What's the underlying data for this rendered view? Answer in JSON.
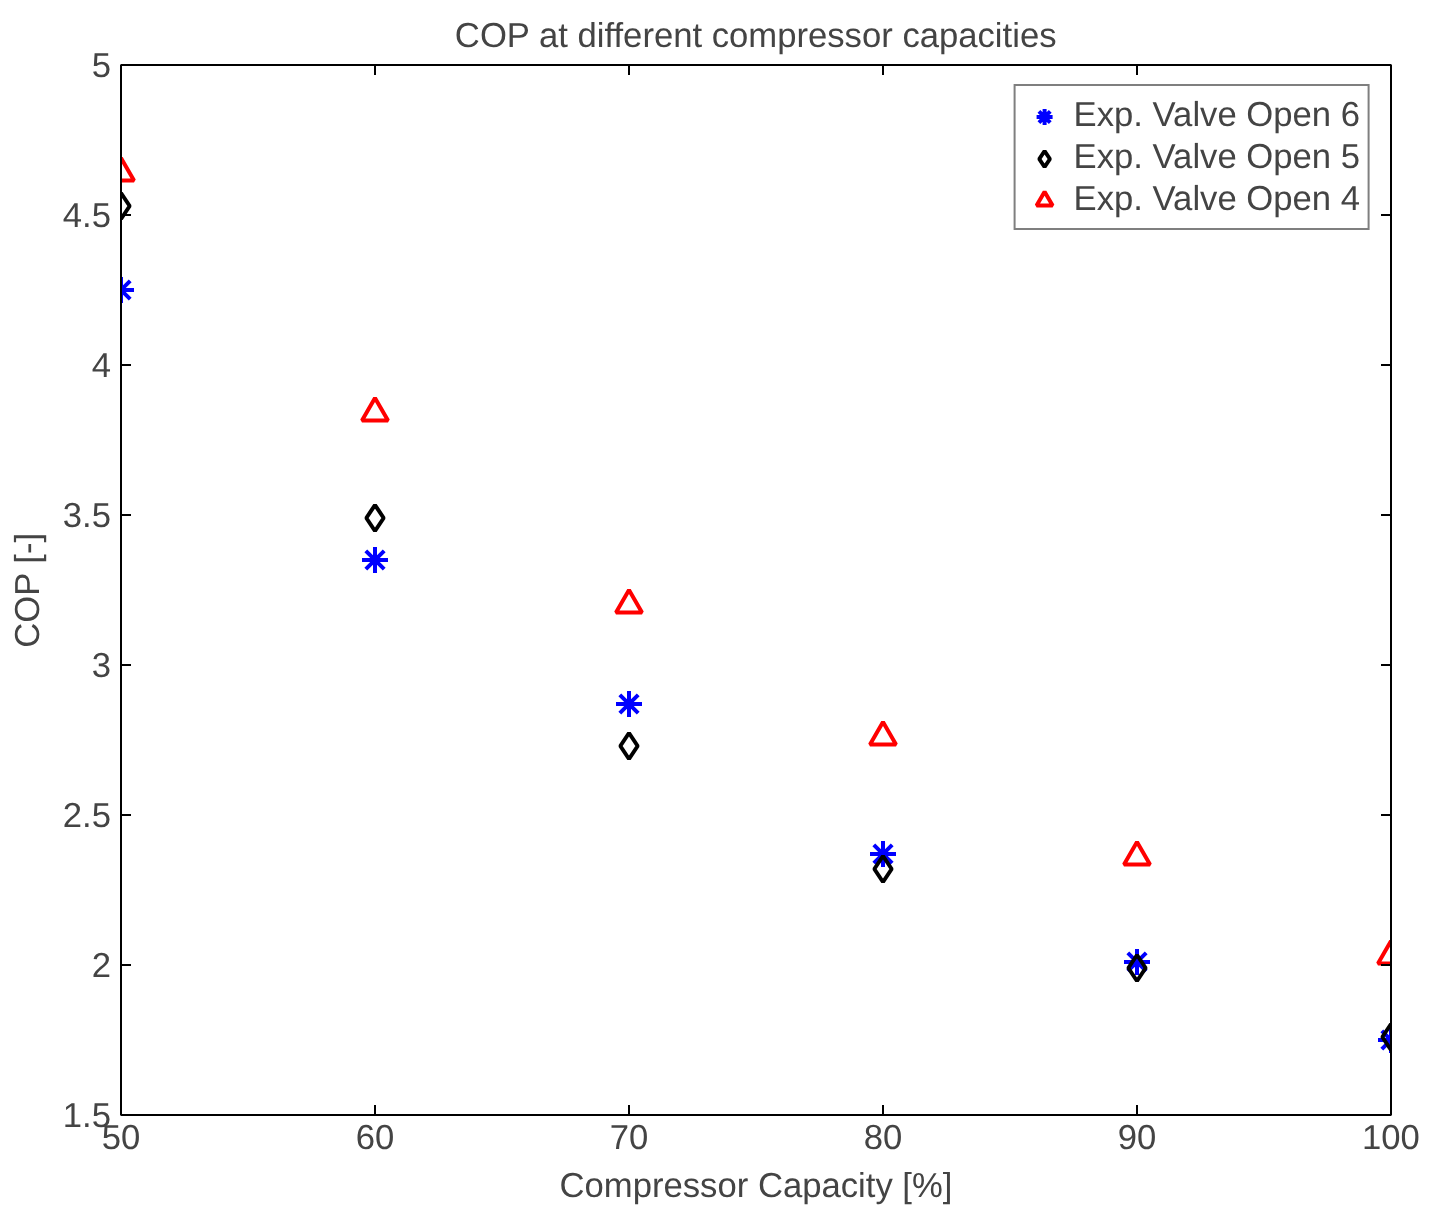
{
  "chart_data": {
    "type": "scatter",
    "title": "COP at different compressor capacities",
    "xlabel": "Compressor Capacity [%]",
    "ylabel": "COP [-]",
    "x": [
      50,
      60,
      70,
      80,
      90,
      100
    ],
    "series": [
      {
        "name": "Exp. Valve Open 6",
        "color": "#0000ff",
        "marker": "cross",
        "values": [
          4.25,
          3.35,
          2.87,
          2.37,
          2.01,
          1.75
        ]
      },
      {
        "name": "Exp. Valve Open 5",
        "color": "#000000",
        "marker": "diamond",
        "values": [
          4.53,
          3.49,
          2.73,
          2.32,
          1.99,
          1.76
        ]
      },
      {
        "name": "Exp. Valve Open 4",
        "color": "#ff0000",
        "marker": "triangle",
        "values": [
          4.64,
          3.84,
          3.2,
          2.76,
          2.36,
          2.03
        ]
      }
    ],
    "xlim": [
      50,
      100
    ],
    "xticks": [
      50,
      60,
      70,
      80,
      90,
      100
    ],
    "ylim": [
      1.5,
      5
    ],
    "yticks": [
      1.5,
      2,
      2.5,
      3,
      3.5,
      4,
      4.5,
      5
    ],
    "grid": false,
    "legend": "top right"
  }
}
